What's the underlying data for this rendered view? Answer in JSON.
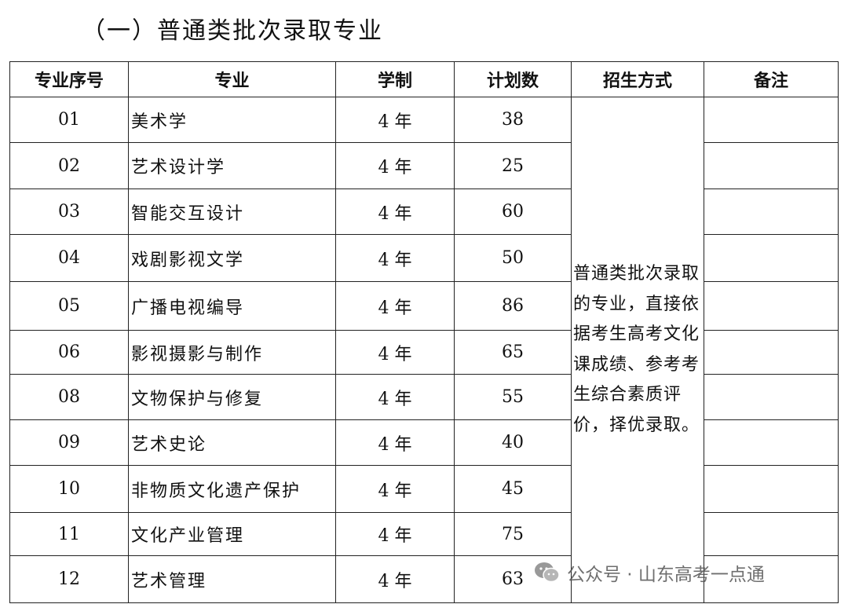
{
  "title": "（一）普通类批次录取专业",
  "table": {
    "headers": [
      "专业序号",
      "专业",
      "学制",
      "计划数",
      "招生方式",
      "备注"
    ],
    "rows": [
      {
        "no": "01",
        "major": "美术学",
        "years": "4 年",
        "plan": "38"
      },
      {
        "no": "02",
        "major": "艺术设计学",
        "years": "4 年",
        "plan": "25"
      },
      {
        "no": "03",
        "major": "智能交互设计",
        "years": "4 年",
        "plan": "60"
      },
      {
        "no": "04",
        "major": "戏剧影视文学",
        "years": "4 年",
        "plan": "50"
      },
      {
        "no": "05",
        "major": "广播电视编导",
        "years": "4 年",
        "plan": "86"
      },
      {
        "no": "06",
        "major": "影视摄影与制作",
        "years": "4 年",
        "plan": "65"
      },
      {
        "no": "08",
        "major": "文物保护与修复",
        "years": "4 年",
        "plan": "55"
      },
      {
        "no": "09",
        "major": "艺术史论",
        "years": "4 年",
        "plan": "40"
      },
      {
        "no": "10",
        "major": "非物质文化遗产保护",
        "years": "4 年",
        "plan": "45"
      },
      {
        "no": "11",
        "major": "文化产业管理",
        "years": "4 年",
        "plan": "75"
      },
      {
        "no": "12",
        "major": "艺术管理",
        "years": "4 年",
        "plan": "63"
      }
    ],
    "admission_method": "普通类批次录取的专业，直接依据考生高考文化课成绩、参考考生综合素质评价，择优录取。"
  },
  "watermark": {
    "icon": "wechat-icon",
    "text": "公众号 · 山东高考一点通"
  }
}
